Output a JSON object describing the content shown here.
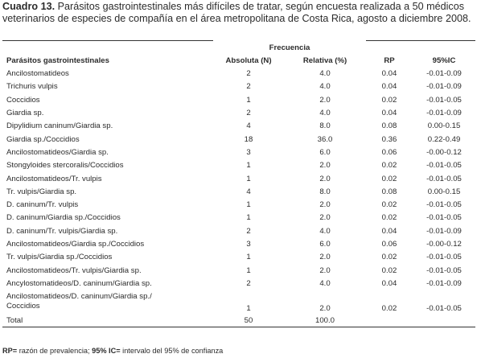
{
  "caption": {
    "label": "Cuadro 13.",
    "text": "Parásitos gastrointestinales más difíciles de tratar, según encuesta realizada a 50 médicos veterinarios de especies de compañía en el área metropolitana de Costa Rica, agosto a diciembre 2008."
  },
  "table": {
    "group_header": "Frecuencia",
    "headers": {
      "name": "Parásitos gastrointestinales",
      "absolute": "Absoluta (N)",
      "relative": "Relativa (%)",
      "rp": "RP",
      "ic": "95%IC"
    },
    "rows": [
      {
        "name": "Ancilostomatideos",
        "absolute": "2",
        "relative": "4.0",
        "rp": "0.04",
        "ic": "-0.01-0.09"
      },
      {
        "name": "Trichuris vulpis",
        "absolute": "2",
        "relative": "4.0",
        "rp": "0.04",
        "ic": "-0.01-0.09"
      },
      {
        "name": "Coccidios",
        "absolute": "1",
        "relative": "2.0",
        "rp": "0.02",
        "ic": "-0.01-0.05"
      },
      {
        "name": "Giardia sp.",
        "absolute": "2",
        "relative": "4.0",
        "rp": "0.04",
        "ic": "-0.01-0.09"
      },
      {
        "name": "Dipylidium caninum/Giardia sp.",
        "absolute": "4",
        "relative": "8.0",
        "rp": "0.08",
        "ic": "0.00-0.15"
      },
      {
        "name": "Giardia sp./Coccidios",
        "absolute": "18",
        "relative": "36.0",
        "rp": "0.36",
        "ic": "0.22-0.49"
      },
      {
        "name": "Ancilostomatideos/Giardia sp.",
        "absolute": "3",
        "relative": "6.0",
        "rp": "0.06",
        "ic": "-0.00-0.12"
      },
      {
        "name": "Stongyloides stercoralis/Coccidios",
        "absolute": "1",
        "relative": "2.0",
        "rp": "0.02",
        "ic": "-0.01-0.05"
      },
      {
        "name": "Ancilostomatideos/Tr. vulpis",
        "absolute": "1",
        "relative": "2.0",
        "rp": "0.02",
        "ic": "-0.01-0.05"
      },
      {
        "name": "Tr. vulpis/Giardia sp.",
        "absolute": "4",
        "relative": "8.0",
        "rp": "0.08",
        "ic": "0.00-0.15"
      },
      {
        "name": "D. caninum/Tr. vulpis",
        "absolute": "1",
        "relative": "2.0",
        "rp": "0.02",
        "ic": "-0.01-0.05"
      },
      {
        "name": "D. caninum/Giardia sp./Coccidios",
        "absolute": "1",
        "relative": "2.0",
        "rp": "0.02",
        "ic": "-0.01-0.05"
      },
      {
        "name": "D. caninum/Tr. vulpis/Giardia sp.",
        "absolute": "2",
        "relative": "4.0",
        "rp": "0.04",
        "ic": "-0.01-0.09"
      },
      {
        "name": "Ancilostomatideos/Giardia sp./Coccidios",
        "absolute": "3",
        "relative": "6.0",
        "rp": "0.06",
        "ic": "-0.00-0.12"
      },
      {
        "name": "Tr. vulpis/Giardia sp./Coccidios",
        "absolute": "1",
        "relative": "2.0",
        "rp": "0.02",
        "ic": "-0.01-0.05"
      },
      {
        "name": "Ancilostomatideos/Tr. vulpis/Giardia sp.",
        "absolute": "1",
        "relative": "2.0",
        "rp": "0.02",
        "ic": "-0.01-0.05"
      },
      {
        "name": "Ancylostomatideos/D. caninum/Giardia sp.",
        "absolute": "2",
        "relative": "4.0",
        "rp": "0.04",
        "ic": "-0.01-0.09"
      }
    ],
    "multiline_row": {
      "name_line1": "Ancilostomatideos/D. caninum/Giardia sp./",
      "name_line2": "Coccidios",
      "absolute": "1",
      "relative": "2.0",
      "rp": "0.02",
      "ic": "-0.01-0.05"
    },
    "total": {
      "label": "Total",
      "absolute": "50",
      "relative": "100.0"
    }
  },
  "footnote": {
    "rp_abbr": "RP=",
    "rp_text": " razón de prevalencia; ",
    "ic_abbr": "95% IC=",
    "ic_text": " intervalo del 95% de confianza"
  }
}
